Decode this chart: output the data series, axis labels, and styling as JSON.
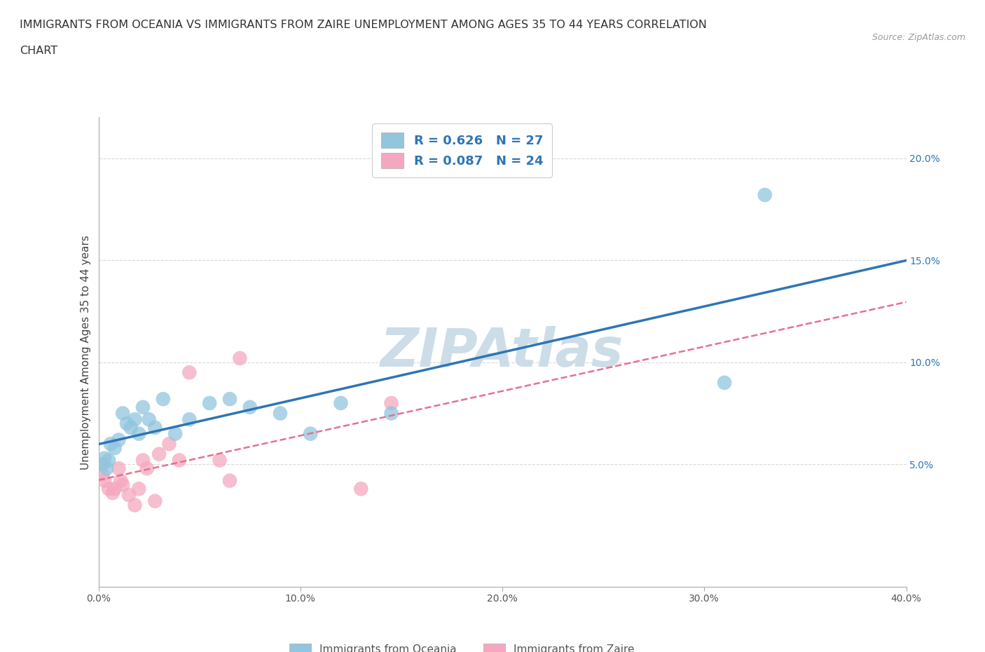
{
  "title_line1": "IMMIGRANTS FROM OCEANIA VS IMMIGRANTS FROM ZAIRE UNEMPLOYMENT AMONG AGES 35 TO 44 YEARS CORRELATION",
  "title_line2": "CHART",
  "source_text": "Source: ZipAtlas.com",
  "ylabel": "Unemployment Among Ages 35 to 44 years",
  "xlim": [
    0.0,
    0.4
  ],
  "ylim": [
    -0.01,
    0.22
  ],
  "xticks": [
    0.0,
    0.1,
    0.2,
    0.3,
    0.4
  ],
  "xtick_labels": [
    "0.0%",
    "10.0%",
    "20.0%",
    "30.0%",
    "40.0%"
  ],
  "yticks": [
    0.05,
    0.1,
    0.15,
    0.2
  ],
  "ytick_labels": [
    "5.0%",
    "10.0%",
    "15.0%",
    "20.0%"
  ],
  "oceania_color": "#92c5de",
  "zaire_color": "#f4a8c0",
  "oceania_R": 0.626,
  "oceania_N": 27,
  "zaire_R": 0.087,
  "zaire_N": 24,
  "legend_label_oceania": "Immigrants from Oceania",
  "legend_label_zaire": "Immigrants from Zaire",
  "watermark": "ZIPAtlas",
  "oceania_x": [
    0.002,
    0.003,
    0.004,
    0.005,
    0.006,
    0.008,
    0.01,
    0.012,
    0.014,
    0.016,
    0.018,
    0.02,
    0.022,
    0.025,
    0.028,
    0.032,
    0.038,
    0.045,
    0.055,
    0.065,
    0.075,
    0.09,
    0.105,
    0.12,
    0.145,
    0.31,
    0.33
  ],
  "oceania_y": [
    0.05,
    0.053,
    0.048,
    0.052,
    0.06,
    0.058,
    0.062,
    0.075,
    0.07,
    0.068,
    0.072,
    0.065,
    0.078,
    0.072,
    0.068,
    0.082,
    0.065,
    0.072,
    0.08,
    0.082,
    0.078,
    0.075,
    0.065,
    0.08,
    0.075,
    0.09,
    0.182
  ],
  "zaire_x": [
    0.001,
    0.002,
    0.003,
    0.005,
    0.007,
    0.008,
    0.01,
    0.011,
    0.012,
    0.015,
    0.018,
    0.02,
    0.022,
    0.024,
    0.028,
    0.03,
    0.035,
    0.04,
    0.045,
    0.06,
    0.065,
    0.07,
    0.13,
    0.145
  ],
  "zaire_y": [
    0.05,
    0.045,
    0.042,
    0.038,
    0.036,
    0.038,
    0.048,
    0.042,
    0.04,
    0.035,
    0.03,
    0.038,
    0.052,
    0.048,
    0.032,
    0.055,
    0.06,
    0.052,
    0.095,
    0.052,
    0.042,
    0.102,
    0.038,
    0.08
  ],
  "bg_color": "#ffffff",
  "grid_color": "#d8d8d8",
  "line_blue_color": "#2e75b6",
  "line_pink_color": "#e87090",
  "title_fontsize": 11.5,
  "axis_label_fontsize": 11,
  "tick_fontsize": 10,
  "watermark_color": "#ccdde8",
  "watermark_fontsize": 55,
  "legend_text_color": "#2e75b6"
}
